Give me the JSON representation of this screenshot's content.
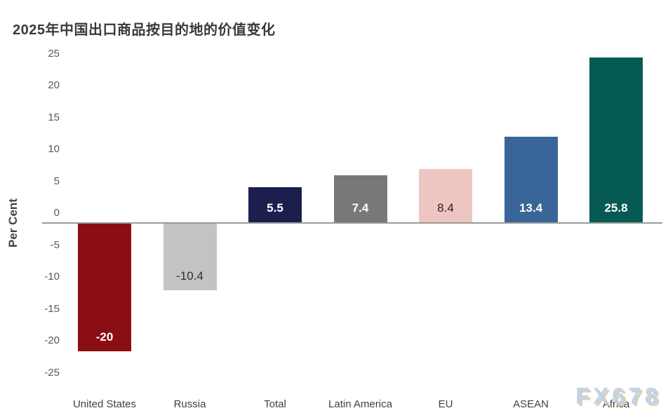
{
  "watermark": "FX678",
  "chart_data": {
    "type": "bar",
    "title": "2025年中国出口商品按目的地的价值变化",
    "ylabel": "Per Cent",
    "ylim": [
      -25,
      25
    ],
    "ytick_step": 5,
    "yticks": [
      25,
      20,
      15,
      10,
      5,
      0,
      -5,
      -10,
      -15,
      -20,
      -25
    ],
    "grid": false,
    "legend": "none",
    "categories": [
      "United States",
      "Russia",
      "Total",
      "Latin America",
      "EU",
      "ASEAN",
      "Africa"
    ],
    "values": [
      -20,
      -10.4,
      5.5,
      7.4,
      8.4,
      13.4,
      25.8
    ],
    "value_labels": [
      "-20",
      "-10.4",
      "5.5",
      "7.4",
      "8.4",
      "13.4",
      "25.8"
    ],
    "bar_colors": [
      "#8A0E13",
      "#C3C3C3",
      "#1B1F4E",
      "#787878",
      "#EEC6C1",
      "#3A6598",
      "#055B53"
    ],
    "value_label_colors": [
      "#ffffff",
      "#2e2e2e",
      "#ffffff",
      "#ffffff",
      "#1f1f1f",
      "#ffffff",
      "#ffffff"
    ],
    "axis_line_color": "#9a9a9a"
  }
}
